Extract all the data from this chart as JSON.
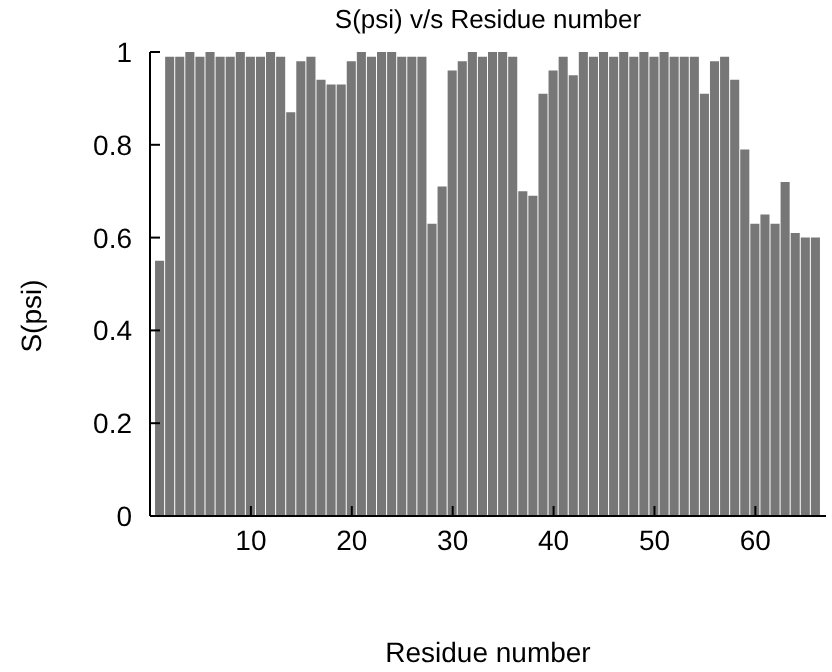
{
  "chart_data": {
    "type": "bar",
    "title": "S(psi) v/s Residue number",
    "xlabel": "Residue number",
    "ylabel": "S(psi)",
    "x": [
      1,
      2,
      3,
      4,
      5,
      6,
      7,
      8,
      9,
      10,
      11,
      12,
      13,
      14,
      15,
      16,
      17,
      18,
      19,
      20,
      21,
      22,
      23,
      24,
      25,
      26,
      27,
      28,
      29,
      30,
      31,
      32,
      33,
      34,
      35,
      36,
      37,
      38,
      39,
      40,
      41,
      42,
      43,
      44,
      45,
      46,
      47,
      48,
      49,
      50,
      51,
      52,
      53,
      54,
      55,
      56,
      57,
      58,
      59,
      60,
      61,
      62,
      63,
      64,
      65,
      66
    ],
    "values": [
      0.55,
      0.99,
      0.99,
      1,
      0.99,
      1,
      0.99,
      0.99,
      1,
      0.99,
      0.99,
      1,
      0.99,
      0.87,
      0.98,
      0.99,
      0.94,
      0.93,
      0.93,
      0.98,
      1,
      0.99,
      1,
      1,
      0.99,
      0.99,
      0.99,
      0.63,
      0.71,
      0.96,
      0.98,
      1,
      0.99,
      1,
      1,
      0.99,
      0.7,
      0.69,
      0.91,
      0.96,
      0.99,
      0.95,
      1,
      0.99,
      1,
      0.99,
      1,
      0.99,
      1,
      0.99,
      1,
      0.99,
      0.99,
      0.99,
      0.91,
      0.98,
      0.99,
      0.94,
      0.79,
      0.63,
      0.65,
      0.63,
      0.72,
      0.61,
      0.6,
      0.6
    ],
    "color": "#777777",
    "xlim": [
      0,
      67
    ],
    "xticks": [
      10,
      20,
      30,
      40,
      50,
      60
    ],
    "ylim": [
      0,
      1
    ],
    "yticks": [
      0,
      0.2,
      0.4,
      0.6,
      0.8,
      1
    ],
    "grid": false,
    "legend": false
  }
}
